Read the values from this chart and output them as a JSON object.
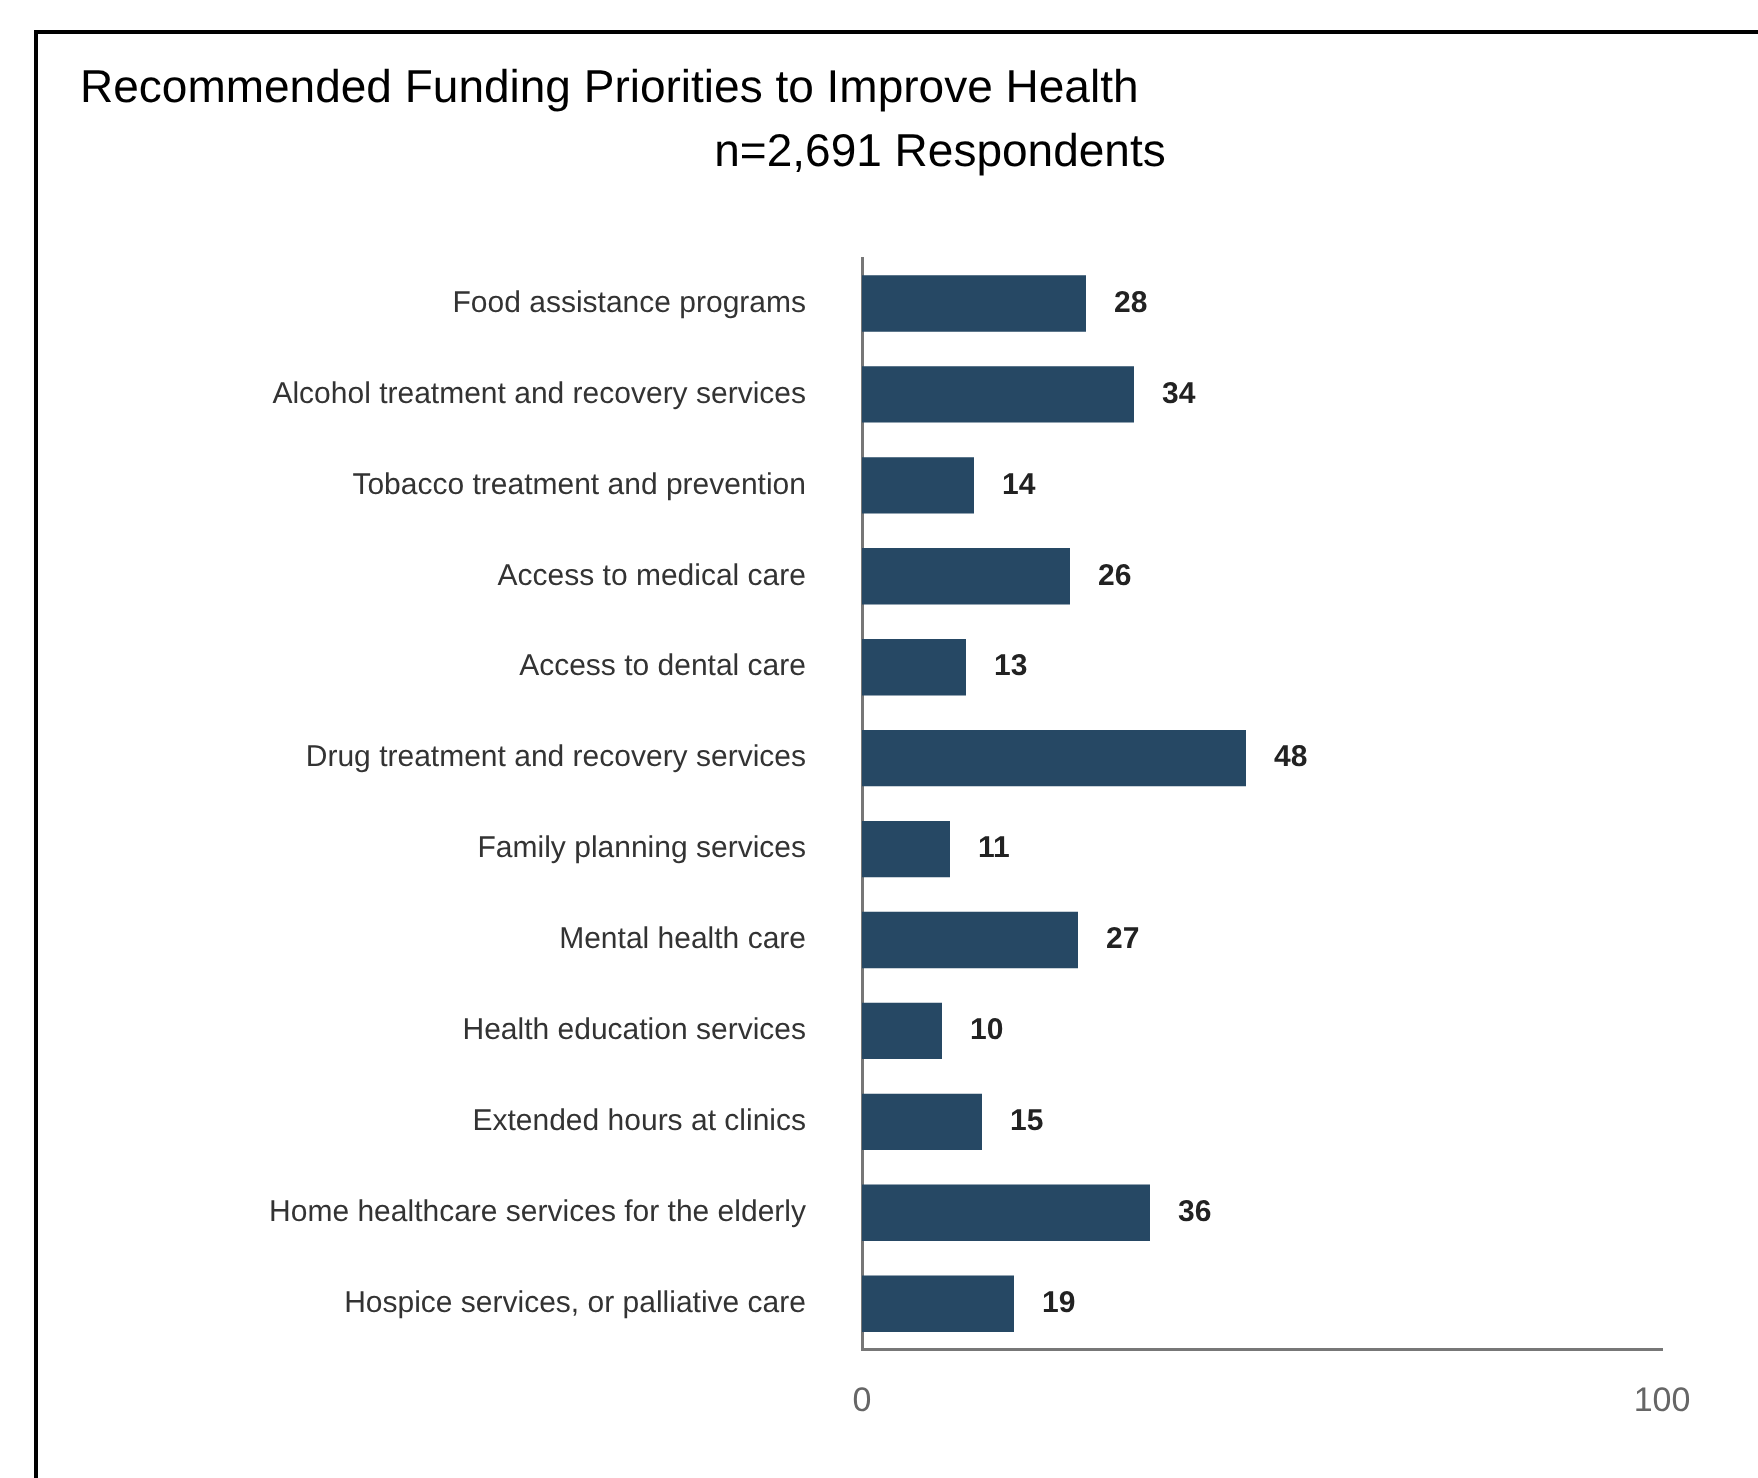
{
  "chart_data": {
    "type": "bar",
    "orientation": "horizontal",
    "title": "Recommended Funding Priorities to Improve Health",
    "subtitle": "n=2,691 Respondents",
    "categories": [
      "Food assistance programs",
      "Alcohol treatment and recovery services",
      "Tobacco treatment and prevention",
      "Access to medical care",
      "Access to dental care",
      "Drug treatment and recovery services",
      "Family planning services",
      "Mental health care",
      "Health education services",
      "Extended hours at clinics",
      "Home healthcare services for the elderly",
      "Hospice services, or palliative care"
    ],
    "values": [
      28,
      34,
      14,
      26,
      13,
      48,
      11,
      27,
      10,
      15,
      36,
      19
    ],
    "color": "#264864",
    "xlim": [
      0,
      100
    ],
    "xticks": [
      0,
      100
    ],
    "grid": false,
    "legend": false,
    "data_labels": true
  }
}
